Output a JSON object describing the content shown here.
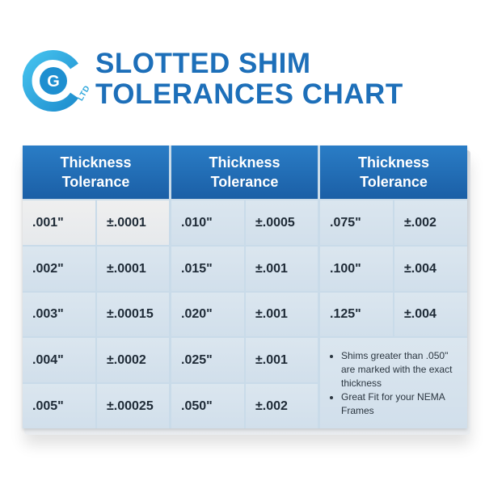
{
  "brand": {
    "logo_letter": "G",
    "logo_suffix": "LTD",
    "colors": {
      "primary": "#1d6fb9",
      "accent": "#2ea7dc",
      "header": "#1b5fa6"
    }
  },
  "title": {
    "line1": "SLOTTED SHIM",
    "line2": "TOLERANCES CHART"
  },
  "table": {
    "headers": [
      {
        "line1": "Thickness",
        "line2": "Tolerance"
      },
      {
        "line1": "Thickness",
        "line2": "Tolerance"
      },
      {
        "line1": "Thickness",
        "line2": "Tolerance"
      }
    ],
    "columns": [
      {
        "rows": [
          {
            "thickness": ".001\"",
            "tolerance": "±.0001"
          },
          {
            "thickness": ".002\"",
            "tolerance": "±.0001"
          },
          {
            "thickness": ".003\"",
            "tolerance": "±.00015"
          },
          {
            "thickness": ".004\"",
            "tolerance": "±.0002"
          },
          {
            "thickness": ".005\"",
            "tolerance": "±.00025"
          }
        ]
      },
      {
        "rows": [
          {
            "thickness": ".010\"",
            "tolerance": "±.0005"
          },
          {
            "thickness": ".015\"",
            "tolerance": "±.001"
          },
          {
            "thickness": ".020\"",
            "tolerance": "±.001"
          },
          {
            "thickness": ".025\"",
            "tolerance": "±.001"
          },
          {
            "thickness": ".050\"",
            "tolerance": "±.002"
          }
        ]
      },
      {
        "rows": [
          {
            "thickness": ".075\"",
            "tolerance": "±.002"
          },
          {
            "thickness": ".100\"",
            "tolerance": "±.004"
          },
          {
            "thickness": ".125\"",
            "tolerance": "±.004"
          }
        ]
      }
    ]
  },
  "notes": [
    "Shims greater than .050\" are marked with the exact thickness",
    "Great Fit for your NEMA Frames"
  ]
}
